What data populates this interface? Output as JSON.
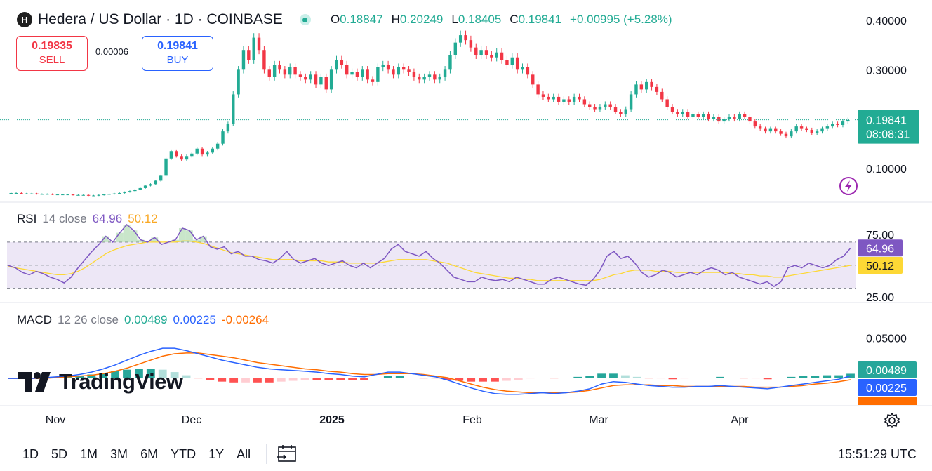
{
  "header": {
    "logo_letter": "H",
    "title": "Hedera / US Dollar · 1D · COINBASE",
    "open_label": "O",
    "open": "0.18847",
    "high_label": "H",
    "high": "0.20249",
    "low_label": "L",
    "low": "0.18405",
    "close_label": "C",
    "close": "0.19841",
    "change": "+0.00995 (+5.28%)"
  },
  "trade": {
    "sell_price": "0.19835",
    "sell_label": "SELL",
    "spread": "0.00006",
    "buy_price": "0.19841",
    "buy_label": "BUY"
  },
  "indicators": {
    "rsi_name": "RSI",
    "rsi_settings": "14 close",
    "rsi_value": "64.96",
    "rsi_ma_value": "50.12",
    "macd_name": "MACD",
    "macd_settings": "12 26 close",
    "macd_hist": "0.00489",
    "macd_line": "0.00225",
    "macd_signal": "-0.00264"
  },
  "watermark": "TradingView",
  "bottom": {
    "timeframes": [
      "1D",
      "5D",
      "1M",
      "3M",
      "6M",
      "YTD",
      "1Y",
      "All"
    ],
    "clock": "15:51:29 UTC"
  },
  "colors": {
    "up": "#22ab94",
    "down": "#f23645",
    "rsi": "#7e57c2",
    "rsi_ma": "#fdd835",
    "macd": "#2962ff",
    "signal": "#ff6d00",
    "band": "#ede7f6"
  },
  "chart_data": [
    {
      "type": "candlestick",
      "title": "Hedera / US Dollar · 1D · COINBASE",
      "x_tick_labels": [
        "Nov",
        "Dec",
        "2025",
        "Feb",
        "Mar",
        "Apr"
      ],
      "y_tick_labels": [
        "0.40000",
        "0.30000",
        "0.10000"
      ],
      "current_price": "0.19841",
      "countdown": "08:08:31",
      "ylim": [
        0.04,
        0.41
      ],
      "approx_daily_close": [
        0.05,
        0.05,
        0.049,
        0.049,
        0.049,
        0.048,
        0.048,
        0.048,
        0.047,
        0.047,
        0.047,
        0.047,
        0.046,
        0.046,
        0.046,
        0.045,
        0.045,
        0.046,
        0.047,
        0.048,
        0.049,
        0.05,
        0.052,
        0.054,
        0.057,
        0.06,
        0.065,
        0.068,
        0.075,
        0.085,
        0.12,
        0.135,
        0.125,
        0.118,
        0.125,
        0.13,
        0.14,
        0.128,
        0.132,
        0.14,
        0.15,
        0.175,
        0.19,
        0.25,
        0.3,
        0.34,
        0.32,
        0.365,
        0.34,
        0.3,
        0.285,
        0.31,
        0.3,
        0.29,
        0.305,
        0.29,
        0.285,
        0.28,
        0.29,
        0.27,
        0.285,
        0.26,
        0.3,
        0.32,
        0.31,
        0.29,
        0.295,
        0.285,
        0.3,
        0.28,
        0.275,
        0.305,
        0.31,
        0.3,
        0.29,
        0.305,
        0.3,
        0.295,
        0.285,
        0.28,
        0.285,
        0.29,
        0.28,
        0.285,
        0.3,
        0.33,
        0.355,
        0.37,
        0.36,
        0.345,
        0.33,
        0.34,
        0.33,
        0.325,
        0.335,
        0.32,
        0.31,
        0.325,
        0.3,
        0.305,
        0.29,
        0.27,
        0.25,
        0.245,
        0.24,
        0.245,
        0.235,
        0.24,
        0.235,
        0.245,
        0.24,
        0.23,
        0.225,
        0.22,
        0.225,
        0.23,
        0.225,
        0.215,
        0.21,
        0.22,
        0.25,
        0.27,
        0.26,
        0.275,
        0.265,
        0.255,
        0.24,
        0.225,
        0.215,
        0.21,
        0.215,
        0.205,
        0.21,
        0.205,
        0.21,
        0.2,
        0.205,
        0.195,
        0.2,
        0.205,
        0.2,
        0.21,
        0.205,
        0.195,
        0.185,
        0.18,
        0.175,
        0.18,
        0.175,
        0.17,
        0.165,
        0.175,
        0.185,
        0.18,
        0.178,
        0.172,
        0.175,
        0.18,
        0.185,
        0.19,
        0.188,
        0.195,
        0.198
      ]
    },
    {
      "type": "line",
      "title": "RSI 14 close",
      "y_tick_labels": [
        "75.00",
        "25.00"
      ],
      "ylim": [
        20,
        85
      ],
      "band": [
        30,
        70
      ],
      "series": [
        {
          "name": "RSI",
          "last": 64.96,
          "values": [
            50,
            48,
            44,
            42,
            45,
            43,
            40,
            38,
            35,
            40,
            48,
            55,
            62,
            68,
            75,
            70,
            78,
            85,
            80,
            72,
            70,
            74,
            68,
            70,
            72,
            82,
            80,
            72,
            75,
            66,
            64,
            66,
            60,
            62,
            58,
            58,
            55,
            54,
            52,
            56,
            62,
            55,
            52,
            54,
            56,
            52,
            50,
            52,
            54,
            50,
            48,
            52,
            48,
            52,
            56,
            64,
            68,
            62,
            60,
            58,
            62,
            56,
            52,
            46,
            40,
            38,
            36,
            36,
            40,
            38,
            37,
            38,
            36,
            40,
            38,
            36,
            34,
            34,
            38,
            40,
            38,
            36,
            34,
            33,
            38,
            46,
            58,
            62,
            56,
            58,
            52,
            44,
            40,
            42,
            46,
            44,
            40,
            42,
            44,
            42,
            46,
            48,
            46,
            42,
            44,
            40,
            38,
            36,
            34,
            36,
            32,
            36,
            48,
            50,
            48,
            52,
            50,
            48,
            50,
            55,
            58,
            64.96
          ]
        },
        {
          "name": "RSI MA",
          "last": 50.12,
          "values": [
            49,
            48,
            47,
            46,
            45,
            44,
            43,
            42,
            42,
            43,
            45,
            48,
            52,
            56,
            60,
            63,
            65,
            67,
            68,
            69,
            70,
            70,
            70,
            70,
            70,
            71,
            71,
            70,
            69,
            67,
            65,
            63,
            61,
            60,
            59,
            58,
            57,
            56,
            55,
            55,
            55,
            55,
            54,
            54,
            54,
            54,
            53,
            53,
            53,
            52,
            52,
            52,
            52,
            52,
            53,
            54,
            55,
            55,
            55,
            55,
            55,
            54,
            53,
            52,
            50,
            48,
            46,
            44,
            43,
            42,
            41,
            40,
            39,
            39,
            38,
            38,
            37,
            37,
            37,
            37,
            37,
            37,
            37,
            37,
            37,
            38,
            40,
            42,
            43,
            45,
            46,
            46,
            46,
            45,
            45,
            45,
            44,
            44,
            44,
            44,
            44,
            44,
            44,
            44,
            43,
            43,
            42,
            42,
            41,
            41,
            40,
            40,
            41,
            42,
            43,
            44,
            45,
            46,
            47,
            48,
            49,
            50.12
          ]
        }
      ]
    },
    {
      "type": "line",
      "title": "MACD 12 26 close",
      "y_tick_labels": [
        "0.05000"
      ],
      "ylim": [
        -0.03,
        0.06
      ],
      "series": [
        {
          "name": "MACD",
          "last": 0.00225,
          "values": [
            -0.001,
            -0.001,
            -0.001,
            0.0,
            0.001,
            0.002,
            0.004,
            0.007,
            0.011,
            0.016,
            0.022,
            0.028,
            0.033,
            0.037,
            0.037,
            0.034,
            0.03,
            0.026,
            0.022,
            0.019,
            0.016,
            0.013,
            0.011,
            0.01,
            0.009,
            0.008,
            0.007,
            0.005,
            0.004,
            0.002,
            0.001,
            0.004,
            0.007,
            0.007,
            0.005,
            0.003,
            0.001,
            -0.003,
            -0.008,
            -0.013,
            -0.017,
            -0.02,
            -0.021,
            -0.021,
            -0.02,
            -0.019,
            -0.02,
            -0.019,
            -0.017,
            -0.014,
            -0.008,
            -0.005,
            -0.006,
            -0.008,
            -0.01,
            -0.011,
            -0.012,
            -0.012,
            -0.011,
            -0.011,
            -0.01,
            -0.011,
            -0.012,
            -0.013,
            -0.014,
            -0.012,
            -0.01,
            -0.008,
            -0.006,
            -0.004,
            -0.002,
            0.00225
          ]
        },
        {
          "name": "Signal",
          "last": -0.00264,
          "values": [
            -0.001,
            -0.001,
            -0.001,
            -0.001,
            0.0,
            0.001,
            0.002,
            0.003,
            0.005,
            0.008,
            0.012,
            0.017,
            0.022,
            0.027,
            0.03,
            0.031,
            0.031,
            0.029,
            0.027,
            0.025,
            0.022,
            0.019,
            0.017,
            0.015,
            0.013,
            0.011,
            0.01,
            0.008,
            0.007,
            0.005,
            0.004,
            0.004,
            0.005,
            0.005,
            0.005,
            0.004,
            0.002,
            0.0,
            -0.004,
            -0.008,
            -0.012,
            -0.015,
            -0.017,
            -0.018,
            -0.019,
            -0.019,
            -0.019,
            -0.019,
            -0.018,
            -0.016,
            -0.013,
            -0.01,
            -0.009,
            -0.009,
            -0.009,
            -0.01,
            -0.01,
            -0.011,
            -0.011,
            -0.011,
            -0.011,
            -0.011,
            -0.011,
            -0.012,
            -0.012,
            -0.012,
            -0.011,
            -0.01,
            -0.008,
            -0.007,
            -0.005,
            -0.00264
          ]
        },
        {
          "name": "Histogram",
          "last": 0.00489
        }
      ]
    }
  ]
}
